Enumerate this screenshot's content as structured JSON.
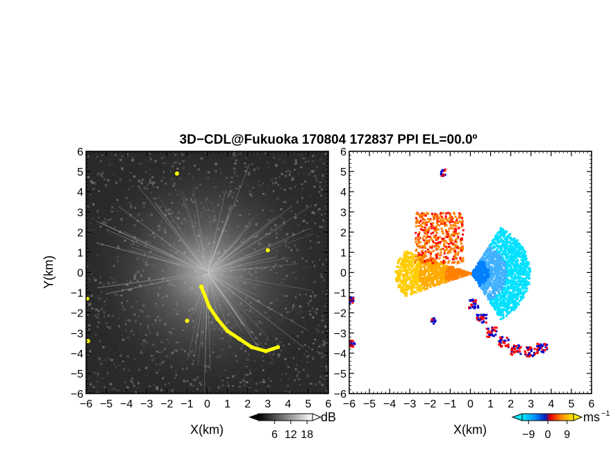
{
  "figure": {
    "title": "3D−CDL@Fukuoka 170804 172837 PPI EL=00.0º"
  },
  "colors": {
    "reflectivity_background": "#2a2a2a",
    "echo_yellow": "#ffff00",
    "velocity_neg_dark": "#0000cc",
    "velocity_neg_mid": "#0080ff",
    "velocity_neg_light": "#00e0ff",
    "velocity_pos_light": "#ffcc00",
    "velocity_pos_mid": "#ff8000",
    "velocity_pos_dark": "#ff0000"
  },
  "chart_data": [
    {
      "type": "heatmap",
      "quantity": "reflectivity / SNR",
      "xlabel": "X(km)",
      "ylabel": "Y(km)",
      "xlim": [
        -6,
        6
      ],
      "ylim": [
        -6,
        6
      ],
      "xticks": [
        "−6",
        "−5",
        "−4",
        "−3",
        "−2",
        "−1",
        "0",
        "1",
        "2",
        "3",
        "4",
        "5",
        "6"
      ],
      "yticks": [
        "−6",
        "−5",
        "−4",
        "−3",
        "−2",
        "−1",
        "0",
        "1",
        "2",
        "3",
        "4",
        "5",
        "6"
      ],
      "grid": false,
      "radar_origin": [
        0,
        0
      ],
      "yellow_echo_features": [
        {
          "x": -0.3,
          "y": -0.7
        },
        {
          "x": 0.1,
          "y": -1.7
        },
        {
          "x": 0.5,
          "y": -2.3
        },
        {
          "x": 1.0,
          "y": -2.9
        },
        {
          "x": 1.6,
          "y": -3.3
        },
        {
          "x": 2.2,
          "y": -3.7
        },
        {
          "x": 2.9,
          "y": -3.9
        },
        {
          "x": 3.5,
          "y": -3.7
        },
        {
          "x": -5.9,
          "y": -3.4
        },
        {
          "x": -5.95,
          "y": -1.3
        },
        {
          "x": -1.5,
          "y": 4.9
        },
        {
          "x": 3.0,
          "y": 1.1
        },
        {
          "x": -1.0,
          "y": -2.4
        }
      ],
      "colorbar": {
        "label": "dB",
        "tick_labels": [
          "6",
          "12",
          "18"
        ],
        "range": [
          0,
          20
        ],
        "scale": "grayscale"
      }
    },
    {
      "type": "heatmap",
      "quantity": "radial velocity",
      "xlabel": "X(km)",
      "ylabel": "",
      "xlim": [
        -6,
        6
      ],
      "ylim": [
        -6,
        6
      ],
      "xticks": [
        "−6",
        "−5",
        "−4",
        "−3",
        "−2",
        "−1",
        "0",
        "1",
        "2",
        "3",
        "4",
        "5",
        "6"
      ],
      "yticks": [
        "−6",
        "−5",
        "−4",
        "−3",
        "−2",
        "−1",
        "0",
        "1",
        "2",
        "3",
        "4",
        "5",
        "6"
      ],
      "grid": false,
      "radar_origin": [
        0,
        0
      ],
      "colorbar": {
        "label": "ms",
        "label_superscript": "−1",
        "tick_labels": [
          "−9",
          "0",
          "9"
        ],
        "range": [
          -12,
          12
        ],
        "scale": "cyan-blue-red-orange-yellow"
      }
    }
  ]
}
